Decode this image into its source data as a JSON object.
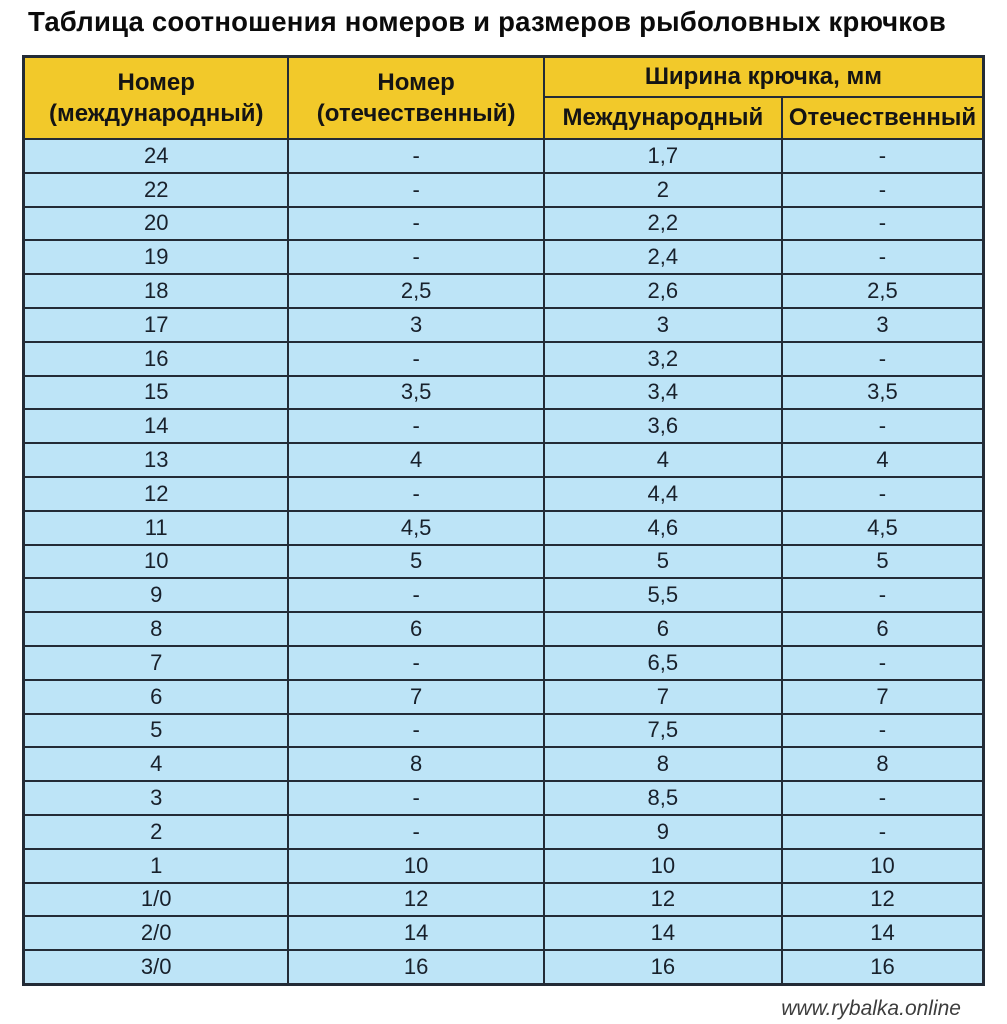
{
  "title": "Таблица соотношения номеров и размеров рыболовных крючков",
  "footer": {
    "site": "www.rybalka.online"
  },
  "colors": {
    "header_bg": "#F2C92A",
    "cell_bg": "#BDE4F7",
    "border": "#232B36",
    "title_text": "#0B0B0B",
    "footer_text": "#3D3D3D"
  },
  "chart_data": {
    "type": "table",
    "title": "Таблица соотношения номеров и размеров рыболовных крючков",
    "header": {
      "col1_line1": "Номер",
      "col1_line2": "(международный)",
      "col2_line1": "Номер",
      "col2_line2": "(отечественный)",
      "group": "Ширина крючка, мм",
      "sub1": "Международный",
      "sub2": "Отечественный"
    },
    "columns": [
      "Номер (международный)",
      "Номер (отечественный)",
      "Ширина крючка, мм — Международный",
      "Ширина крючка, мм — Отечественный"
    ],
    "rows": [
      [
        "24",
        "-",
        "1,7",
        "-"
      ],
      [
        "22",
        "-",
        "2",
        "-"
      ],
      [
        "20",
        "-",
        "2,2",
        "-"
      ],
      [
        "19",
        "-",
        "2,4",
        "-"
      ],
      [
        "18",
        "2,5",
        "2,6",
        "2,5"
      ],
      [
        "17",
        "3",
        "3",
        "3"
      ],
      [
        "16",
        "-",
        "3,2",
        "-"
      ],
      [
        "15",
        "3,5",
        "3,4",
        "3,5"
      ],
      [
        "14",
        "-",
        "3,6",
        "-"
      ],
      [
        "13",
        "4",
        "4",
        "4"
      ],
      [
        "12",
        "-",
        "4,4",
        "-"
      ],
      [
        "11",
        "4,5",
        "4,6",
        "4,5"
      ],
      [
        "10",
        "5",
        "5",
        "5"
      ],
      [
        "9",
        "-",
        "5,5",
        "-"
      ],
      [
        "8",
        "6",
        "6",
        "6"
      ],
      [
        "7",
        "-",
        "6,5",
        "-"
      ],
      [
        "6",
        "7",
        "7",
        "7"
      ],
      [
        "5",
        "-",
        "7,5",
        "-"
      ],
      [
        "4",
        "8",
        "8",
        "8"
      ],
      [
        "3",
        "-",
        "8,5",
        "-"
      ],
      [
        "2",
        "-",
        "9",
        "-"
      ],
      [
        "1",
        "10",
        "10",
        "10"
      ],
      [
        "1/0",
        "12",
        "12",
        "12"
      ],
      [
        "2/0",
        "14",
        "14",
        "14"
      ],
      [
        "3/0",
        "16",
        "16",
        "16"
      ]
    ]
  }
}
